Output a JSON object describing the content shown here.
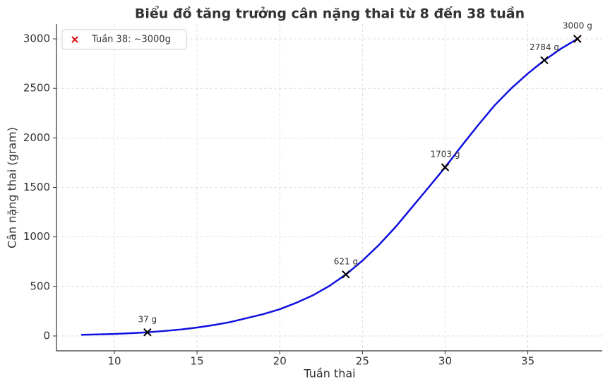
{
  "chart_data": {
    "type": "line",
    "title": "Biểu đồ tăng trưởng cân nặng thai từ 8 đến 38 tuần",
    "xlabel": "Tuần thai",
    "ylabel": "Cân nặng thai (gram)",
    "x": [
      8,
      9,
      10,
      11,
      12,
      13,
      14,
      15,
      16,
      17,
      18,
      19,
      20,
      21,
      22,
      23,
      24,
      25,
      26,
      27,
      28,
      29,
      30,
      31,
      32,
      33,
      34,
      35,
      36,
      37,
      38
    ],
    "series": [
      {
        "color": "#1010e0",
        "values": [
          12,
          16,
          20,
          28,
          37,
          50,
          65,
          85,
          110,
          140,
          180,
          220,
          270,
          335,
          410,
          505,
          621,
          760,
          920,
          1100,
          1300,
          1500,
          1703,
          1920,
          2130,
          2330,
          2500,
          2650,
          2784,
          2900,
          3000
        ]
      },
      {
        "name": "Tuần 38: ~3000g",
        "color": "#e01010",
        "marker": "x",
        "x": [
          38
        ],
        "values": [
          3000
        ]
      }
    ],
    "markers": {
      "color": "#000000",
      "x": [
        12,
        24,
        30,
        36,
        38
      ],
      "values": [
        37,
        621,
        1703,
        2784,
        3000
      ],
      "value_labels": [
        "37 g",
        "621 g",
        "1703 g",
        "2784 g",
        "3000 g"
      ]
    },
    "xlim": [
      6.5,
      39.5
    ],
    "xticks": [
      10,
      15,
      20,
      25,
      30,
      35
    ],
    "ylim": [
      -150,
      3150
    ],
    "yticks": [
      0,
      500,
      1000,
      1500,
      2000,
      2500,
      3000
    ],
    "grid": true,
    "legend": "upper left"
  }
}
